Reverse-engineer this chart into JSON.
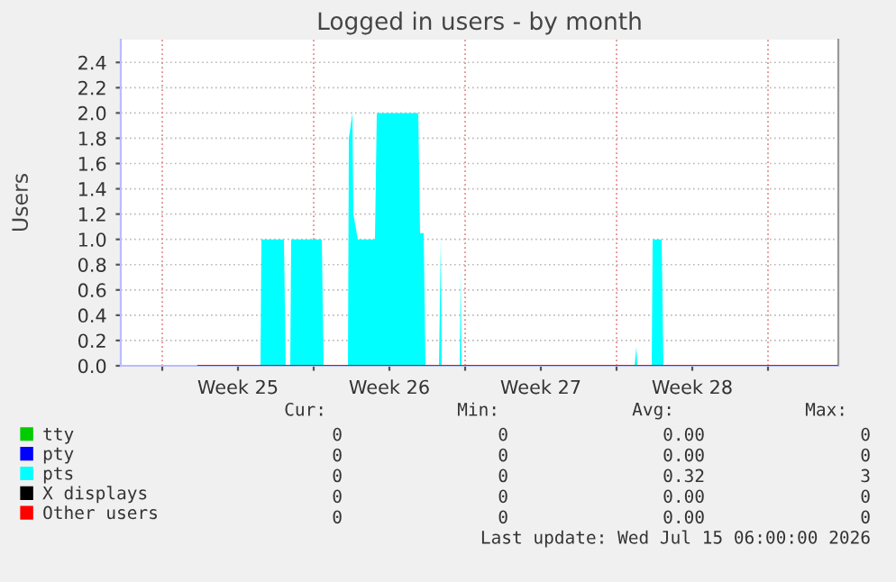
{
  "chart_data": {
    "type": "area",
    "title": "Logged in users - by month",
    "ylabel": "Users",
    "xlim": [
      "2026-06-13T02:00",
      "2026-07-16T06:00"
    ],
    "ylim": [
      0,
      2.58
    ],
    "xticks": [
      {
        "value": "2026-06-15T00:00",
        "label": null
      },
      {
        "value": "2026-06-18T12:00",
        "label": "Week 25"
      },
      {
        "value": "2026-06-22T00:00",
        "label": null
      },
      {
        "value": "2026-06-25T12:00",
        "label": "Week 26"
      },
      {
        "value": "2026-06-29T00:00",
        "label": null
      },
      {
        "value": "2026-07-02T12:00",
        "label": "Week 27"
      },
      {
        "value": "2026-07-06T00:00",
        "label": null
      },
      {
        "value": "2026-07-09T12:00",
        "label": "Week 28"
      },
      {
        "value": "2026-07-13T00:00",
        "label": null
      }
    ],
    "yticks": [
      {
        "value": 0,
        "label": "0.0"
      },
      {
        "value": 0.2,
        "label": "0.2"
      },
      {
        "value": 0.4,
        "label": "0.4"
      },
      {
        "value": 0.6,
        "label": "0.6"
      },
      {
        "value": 0.8,
        "label": "0.8"
      },
      {
        "value": 1.0,
        "label": "1.0"
      },
      {
        "value": 1.2,
        "label": "1.2"
      },
      {
        "value": 1.4,
        "label": "1.4"
      },
      {
        "value": 1.6,
        "label": "1.6"
      },
      {
        "value": 1.8,
        "label": "1.8"
      },
      {
        "value": 2.0,
        "label": "2.0"
      },
      {
        "value": 2.2,
        "label": "2.2"
      },
      {
        "value": 2.4,
        "label": "2.4"
      }
    ],
    "grid": true,
    "legend": "bottom left",
    "series": [
      {
        "name": "tty",
        "color": "#00cc00",
        "type": "line"
      },
      {
        "name": "pty",
        "color": "#0000ff",
        "type": "line"
      },
      {
        "name": "pts",
        "color": "#00ffff",
        "x": [
          "2026-06-16T16:00",
          "2026-06-19T13:00",
          "2026-06-19T14:00",
          "2026-06-20T15:00",
          "2026-06-20T17:00",
          "2026-06-20T22:00",
          "2026-06-20T23:00",
          "2026-06-22T09:00",
          "2026-06-22T11:00",
          "2026-06-23T14:00",
          "2026-06-23T15:00",
          "2026-06-23T19:00",
          "2026-06-23T20:00",
          "2026-06-24T01:00",
          "2026-06-24T20:00",
          "2026-06-24T22:00",
          "2026-06-26T20:00",
          "2026-06-26T22:00",
          "2026-06-27T02:00",
          "2026-06-27T04:00",
          "2026-06-27T19:00",
          "2026-06-27T21:00",
          "2026-06-27T22:00",
          "2026-06-28T18:00",
          "2026-06-28T19:00",
          "2026-06-28T20:00",
          "2026-07-06T20:00",
          "2026-07-06T22:00",
          "2026-07-06T23:00",
          "2026-07-07T15:00",
          "2026-07-07T16:00",
          "2026-07-08T02:00",
          "2026-07-08T04:00",
          "2026-07-16T06:00"
        ],
        "values": [
          0,
          0,
          1,
          1,
          0,
          0,
          1,
          1,
          0,
          0,
          1.8,
          2,
          1.2,
          1,
          1,
          2,
          2,
          1.05,
          1.05,
          0,
          0,
          1,
          0,
          0,
          0.75,
          0,
          0,
          0.15,
          0,
          0,
          1,
          1,
          0,
          0
        ]
      },
      {
        "name": "X displays",
        "color": "#000000",
        "type": "line"
      },
      {
        "name": "Other users",
        "color": "#ff0000",
        "type": "line",
        "x": [
          "2026-06-16T16:00",
          "2026-07-16T06:00"
        ],
        "values": [
          0,
          0
        ]
      }
    ],
    "annotations": [
      "Cur:",
      "Min:",
      "Avg:",
      "Max:",
      "0",
      "0",
      "0.00",
      "0",
      "0",
      "0",
      "0.00",
      "0",
      "0",
      "0",
      "0.32",
      "3",
      "0",
      "0",
      "0.00",
      "0",
      "0",
      "0",
      "0.00",
      "0",
      "Last update: Wed Jul 15 06:00:00 2026"
    ]
  }
}
